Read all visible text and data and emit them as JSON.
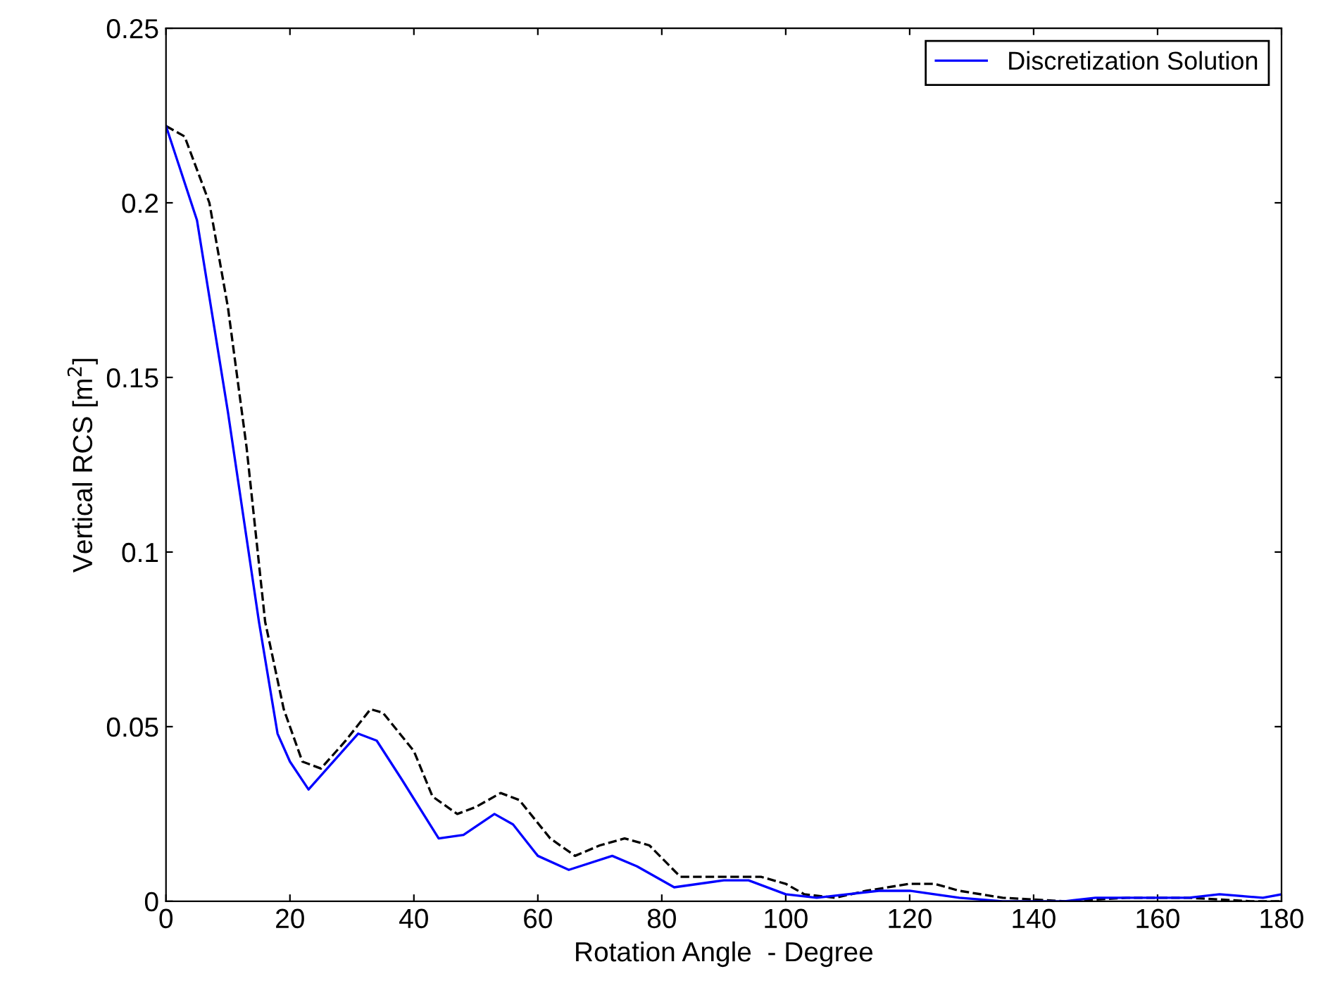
{
  "chart_data": {
    "type": "line",
    "xlabel": "Rotation Angle  - Degree",
    "ylabel": "Vertical RCS [m$^{2}$]",
    "xlim": [
      0,
      180
    ],
    "xticks": [
      0,
      20,
      40,
      60,
      80,
      100,
      120,
      140,
      160,
      180
    ],
    "ylim": [
      0,
      0.25
    ],
    "yticks": [
      0,
      0.05,
      0.1,
      0.15,
      0.2,
      0.25
    ],
    "grid": false,
    "legend": "top right",
    "series": [
      {
        "color": "#000000",
        "line_style": "dashed",
        "x": [
          0,
          3,
          7,
          10,
          13,
          16,
          19,
          22,
          25,
          29,
          33,
          35,
          40,
          43,
          47,
          50,
          54,
          57,
          62,
          66,
          70,
          74,
          78,
          83,
          90,
          96,
          100,
          103,
          108,
          113,
          120,
          124,
          128,
          135,
          145,
          155,
          165,
          175,
          180
        ],
        "values": [
          0.222,
          0.219,
          0.2,
          0.17,
          0.13,
          0.08,
          0.055,
          0.04,
          0.038,
          0.046,
          0.055,
          0.054,
          0.043,
          0.03,
          0.025,
          0.027,
          0.031,
          0.029,
          0.018,
          0.013,
          0.016,
          0.018,
          0.016,
          0.007,
          0.007,
          0.007,
          0.005,
          0.002,
          0.001,
          0.003,
          0.005,
          0.005,
          0.003,
          0.001,
          0.0,
          0.001,
          0.001,
          0.0,
          0.0
        ]
      },
      {
        "name": "Discretization Solution",
        "color": "#0000ff",
        "line_style": "solid",
        "x": [
          0,
          5,
          10,
          15,
          18,
          20,
          23,
          26,
          31,
          34,
          38,
          44,
          48,
          53,
          56,
          60,
          65,
          72,
          76,
          82,
          90,
          94,
          100,
          105,
          115,
          120,
          128,
          135,
          145,
          150,
          165,
          170,
          177,
          180
        ],
        "values": [
          0.222,
          0.195,
          0.14,
          0.08,
          0.048,
          0.04,
          0.032,
          0.038,
          0.048,
          0.046,
          0.035,
          0.018,
          0.019,
          0.025,
          0.022,
          0.013,
          0.009,
          0.013,
          0.01,
          0.004,
          0.006,
          0.006,
          0.002,
          0.001,
          0.003,
          0.003,
          0.001,
          0.0,
          0.0,
          0.001,
          0.001,
          0.002,
          0.001,
          0.002
        ]
      }
    ]
  }
}
